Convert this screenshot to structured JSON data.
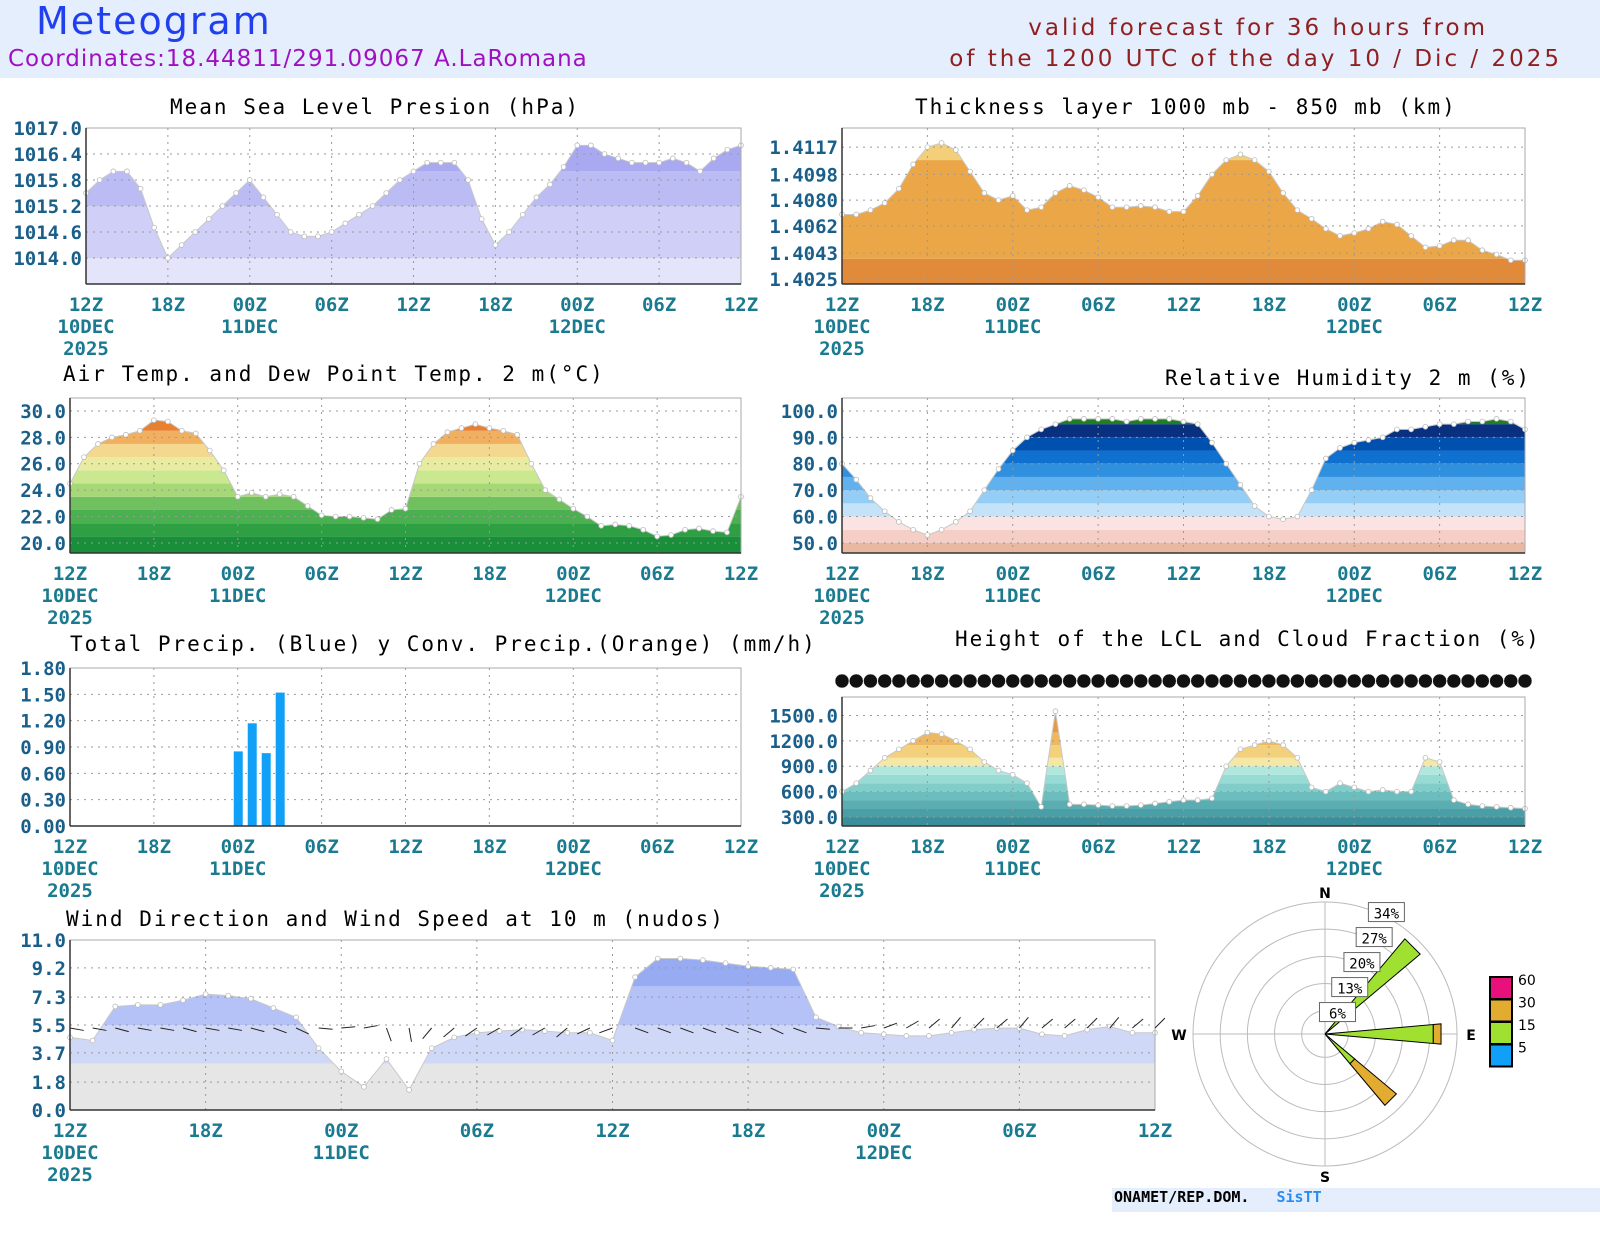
{
  "header": {
    "title": "Meteogram",
    "coords": "Coordinates:18.44811/291.09067 A.LaRomana",
    "valid_line1": "valid forecast for 36 hours from",
    "valid_line2": "of the 1200 UTC of the day 10 / Dic / 2025"
  },
  "footer": {
    "org": "ONAMET/REP.DOM.",
    "brand": "SisTT"
  },
  "time_axis": {
    "ticks": [
      "12Z",
      "18Z",
      "00Z",
      "06Z",
      "12Z",
      "18Z",
      "00Z",
      "06Z",
      "12Z"
    ],
    "date_labels": [
      {
        "tick": 0,
        "lines": [
          "10DEC",
          "2025"
        ]
      },
      {
        "tick": 2,
        "lines": [
          "11DEC"
        ]
      },
      {
        "tick": 6,
        "lines": [
          "12DEC"
        ]
      }
    ]
  },
  "chart_data": [
    {
      "id": "mslp",
      "type": "area",
      "title": "Mean Sea Level Presion (hPa)",
      "yticks": [
        "1014.0",
        "1014.6",
        "1015.2",
        "1015.8",
        "1016.4",
        "1017.0"
      ],
      "ylim": [
        1013.4,
        1017.0
      ],
      "values": [
        1015.5,
        1015.8,
        1016.0,
        1016.0,
        1015.6,
        1014.7,
        1014.0,
        1014.3,
        1014.6,
        1014.9,
        1015.2,
        1015.5,
        1015.8,
        1015.4,
        1015.0,
        1014.6,
        1014.5,
        1014.5,
        1014.6,
        1014.8,
        1015.0,
        1015.2,
        1015.5,
        1015.8,
        1016.0,
        1016.2,
        1016.2,
        1016.2,
        1015.8,
        1014.9,
        1014.3,
        1014.6,
        1015.0,
        1015.4,
        1015.7,
        1016.1,
        1016.6,
        1016.6,
        1016.4,
        1016.3,
        1016.2,
        1016.2,
        1016.2,
        1016.3,
        1016.2,
        1016.0,
        1016.3,
        1016.5,
        1016.6
      ],
      "bands": [
        [
          1014.0,
          "#e4e4fb"
        ],
        [
          1015.2,
          "#cfcff8"
        ],
        [
          1016.0,
          "#bcbcf5"
        ],
        [
          9999,
          "#a9a9f2"
        ]
      ]
    },
    {
      "id": "thickness",
      "type": "area",
      "title": "Thickness layer 1000 mb - 850 mb (km)",
      "yticks": [
        "1.4025",
        "1.4043",
        "1.4062",
        "1.4080",
        "1.4098",
        "1.4117"
      ],
      "ylim": [
        1.40214,
        1.41304
      ],
      "values": [
        1.407,
        1.407,
        1.4073,
        1.4078,
        1.4088,
        1.4105,
        1.4117,
        1.412,
        1.4115,
        1.41,
        1.4085,
        1.408,
        1.4083,
        1.4073,
        1.4075,
        1.4085,
        1.409,
        1.4087,
        1.4082,
        1.4075,
        1.4075,
        1.4076,
        1.4075,
        1.4072,
        1.4072,
        1.4083,
        1.4098,
        1.4108,
        1.4112,
        1.4108,
        1.41,
        1.4085,
        1.4073,
        1.4067,
        1.406,
        1.4055,
        1.4057,
        1.406,
        1.4065,
        1.4063,
        1.4055,
        1.4047,
        1.4048,
        1.4052,
        1.4052,
        1.4045,
        1.4042,
        1.4038,
        1.4038
      ],
      "bands": [
        [
          1.4039,
          "#e08a3a"
        ],
        [
          1.4108,
          "#eba648"
        ],
        [
          9,
          "#f3cf7a"
        ]
      ]
    },
    {
      "id": "temp",
      "type": "area",
      "title": "Air Temp. and Dew Point Temp. 2 m(°C)",
      "yticks": [
        "20.0",
        "22.0",
        "24.0",
        "26.0",
        "28.0",
        "30.0"
      ],
      "ylim": [
        19.24,
        30.98
      ],
      "values": [
        24.5,
        26.5,
        27.5,
        28.0,
        28.2,
        28.5,
        29.3,
        29.2,
        28.5,
        28.3,
        27.0,
        25.5,
        23.5,
        23.8,
        23.5,
        23.7,
        23.5,
        22.8,
        22.1,
        22.0,
        22.0,
        21.9,
        21.8,
        22.5,
        22.6,
        26.0,
        27.5,
        28.4,
        28.7,
        29.0,
        28.7,
        28.5,
        28.2,
        26.0,
        24.0,
        23.3,
        22.6,
        22.0,
        21.3,
        21.4,
        21.3,
        21.0,
        20.5,
        20.6,
        21.0,
        21.1,
        20.9,
        20.8,
        23.5
      ],
      "bands": [
        [
          20.5,
          "#1a8f3a"
        ],
        [
          21.5,
          "#2ea043"
        ],
        [
          22.5,
          "#4bb050"
        ],
        [
          23.5,
          "#70c060"
        ],
        [
          24.5,
          "#a6d878"
        ],
        [
          25.5,
          "#cae890"
        ],
        [
          26.5,
          "#e9eca0"
        ],
        [
          27.5,
          "#f5d890"
        ],
        [
          28.5,
          "#f0b060"
        ],
        [
          29.5,
          "#e88030"
        ],
        [
          99,
          "#d86010"
        ]
      ]
    },
    {
      "id": "rh",
      "type": "area",
      "title": "Relative Humidity 2 m (%)",
      "yticks": [
        "50.0",
        "60.0",
        "70.0",
        "80.0",
        "90.0",
        "100.0"
      ],
      "ylim": [
        46.2,
        104.9
      ],
      "values": [
        80,
        74,
        67,
        62,
        58,
        55,
        53,
        55,
        58,
        62,
        70,
        78,
        85,
        90,
        93,
        95,
        97,
        97,
        97,
        97,
        96,
        97,
        97,
        97,
        96,
        95,
        88,
        80,
        72,
        64,
        60,
        59,
        60,
        70,
        82,
        86,
        88,
        89,
        90,
        93,
        93,
        94,
        95,
        95,
        96,
        96,
        97,
        96,
        93
      ],
      "bands": [
        [
          50,
          "#e9b8a0"
        ],
        [
          55,
          "#f5cfc6"
        ],
        [
          60,
          "#fbe3e3"
        ],
        [
          65,
          "#c4e2f8"
        ],
        [
          70,
          "#94cdf5"
        ],
        [
          75,
          "#62b1ef"
        ],
        [
          80,
          "#3090e0"
        ],
        [
          85,
          "#1070d0"
        ],
        [
          90,
          "#0050b0"
        ],
        [
          95,
          "#08307f"
        ],
        [
          999,
          "#1f8020"
        ]
      ]
    },
    {
      "id": "precip",
      "type": "bar",
      "title": "Total Precip. (Blue) y Conv. Precip.(Orange) (mm/h)",
      "yticks": [
        "0.00",
        "0.30",
        "0.60",
        "0.90",
        "1.20",
        "1.50",
        "1.80"
      ],
      "ylim": [
        0,
        1.8
      ],
      "bars": [
        {
          "hour": 12,
          "total": 0.85,
          "conv": 0
        },
        {
          "hour": 13,
          "total": 1.17,
          "conv": 0
        },
        {
          "hour": 14,
          "total": 0.83,
          "conv": 0
        },
        {
          "hour": 15,
          "total": 1.52,
          "conv": 0
        }
      ],
      "colors": {
        "total": "#10a0f8",
        "conv": "#f0a030"
      }
    },
    {
      "id": "lcl",
      "type": "area",
      "title": "Height of the LCL and Cloud Fraction (%)",
      "yticks": [
        "300.0",
        "600.0",
        "900.0",
        "1200.0",
        "1500.0"
      ],
      "ylim": [
        194,
        1718
      ],
      "values": [
        600,
        700,
        850,
        1000,
        1100,
        1200,
        1300,
        1280,
        1200,
        1100,
        950,
        850,
        800,
        700,
        420,
        1550,
        450,
        450,
        440,
        430,
        430,
        440,
        460,
        480,
        500,
        500,
        520,
        900,
        1100,
        1150,
        1200,
        1150,
        1000,
        650,
        600,
        700,
        650,
        600,
        620,
        600,
        600,
        1000,
        950,
        500,
        450,
        430,
        420,
        410,
        400
      ],
      "bands": [
        [
          300,
          "#3b8f9a"
        ],
        [
          400,
          "#4a9ea6"
        ],
        [
          500,
          "#5aaeb2"
        ],
        [
          600,
          "#6cbdbe"
        ],
        [
          700,
          "#82cdca"
        ],
        [
          800,
          "#98dbd4"
        ],
        [
          900,
          "#b0e8de"
        ],
        [
          1000,
          "#f5e8a6"
        ],
        [
          1150,
          "#f2d07c"
        ],
        [
          1300,
          "#edb860"
        ],
        [
          9999,
          "#e89a40"
        ]
      ]
    },
    {
      "id": "wind",
      "type": "area",
      "title": "Wind Direction and Wind Speed at 10 m (nudos)",
      "yticks": [
        "0.0",
        "1.8",
        "3.7",
        "5.5",
        "7.3",
        "9.2",
        "11.0"
      ],
      "ylim": [
        0,
        11
      ],
      "values": [
        4.7,
        4.5,
        6.7,
        6.8,
        6.8,
        7.1,
        7.5,
        7.4,
        7.2,
        6.6,
        6.0,
        4.0,
        2.5,
        1.5,
        3.3,
        1.3,
        4.0,
        4.7,
        5.0,
        5.1,
        5.2,
        5.1,
        5.0,
        5.0,
        4.5,
        8.6,
        9.8,
        9.8,
        9.7,
        9.5,
        9.3,
        9.2,
        9.1,
        6.0,
        5.4,
        5.0,
        4.9,
        4.8,
        4.8,
        5.0,
        5.2,
        5.3,
        5.3,
        4.9,
        4.8,
        5.2,
        5.4,
        5.0,
        5.0
      ],
      "directions": [
        100,
        100,
        105,
        100,
        100,
        105,
        100,
        100,
        105,
        110,
        115,
        95,
        85,
        80,
        160,
        170,
        220,
        230,
        235,
        240,
        235,
        240,
        230,
        245,
        250,
        110,
        110,
        110,
        110,
        110,
        110,
        115,
        110,
        95,
        90,
        80,
        70,
        60,
        50,
        40,
        45,
        50,
        40,
        50,
        50,
        45,
        40,
        50,
        45
      ],
      "bands": [
        [
          3,
          "#e6e6e6"
        ],
        [
          5.5,
          "#d0d8f8"
        ],
        [
          8,
          "#b4c2f8"
        ],
        [
          99,
          "#96abf2"
        ]
      ]
    },
    {
      "id": "windrose",
      "type": "polar",
      "ring_labels": [
        "6%",
        "13%",
        "20%",
        "27%",
        "34%"
      ],
      "cardinals": [
        "N",
        "E",
        "S",
        "W"
      ],
      "legend": [
        {
          "label": "60",
          "color": "#e8107a"
        },
        {
          "label": "30",
          "color": "#e2ac30"
        },
        {
          "label": "15",
          "color": "#a0e030"
        },
        {
          "label": "5",
          "color": "#10a0f8"
        }
      ],
      "sectors": [
        {
          "dir": 45,
          "segments": [
            {
              "to": 32,
              "color": "#a0e030"
            }
          ]
        },
        {
          "dir": 90,
          "segments": [
            {
              "to": 28,
              "color": "#a0e030"
            },
            {
              "to": 30,
              "color": "#e2ac30"
            }
          ]
        },
        {
          "dir": 135,
          "segments": [
            {
              "to": 10,
              "color": "#a0e030"
            },
            {
              "to": 24,
              "color": "#e2ac30"
            }
          ]
        }
      ]
    }
  ]
}
